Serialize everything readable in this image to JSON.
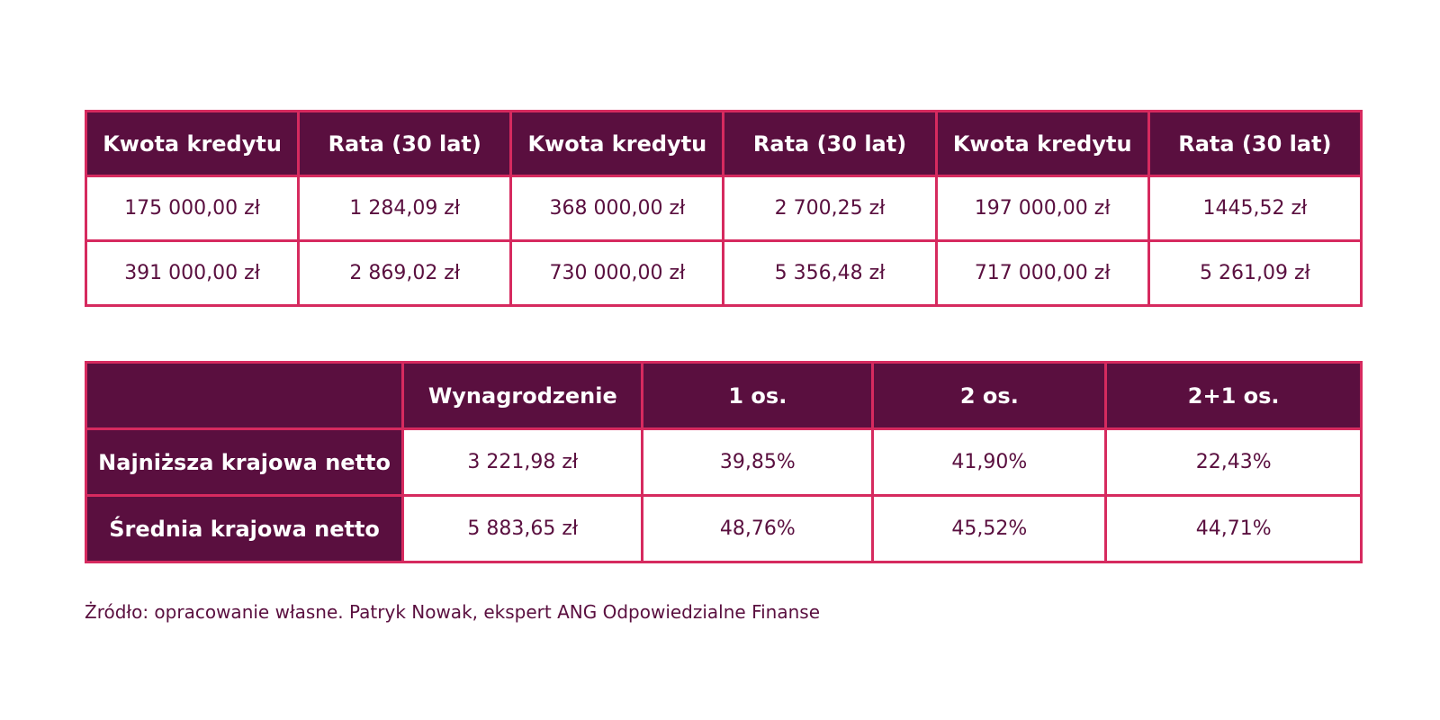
{
  "loans_table": {
    "headers": [
      "Kwota kredytu",
      "Rata (30 lat)",
      "Kwota kredytu",
      "Rata (30 lat)",
      "Kwota kredytu",
      "Rata (30 lat)"
    ],
    "rows": [
      [
        "175 000,00 zł",
        "1 284,09 zł",
        "368 000,00 zł",
        "2 700,25 zł",
        "197 000,00 zł",
        "1445,52 zł"
      ],
      [
        "391 000,00 zł",
        "2 869,02 zł",
        "730 000,00 zł",
        "5 356,48 zł",
        "717 000,00 zł",
        "5 261,09 zł"
      ]
    ]
  },
  "salary_table": {
    "headers": [
      "",
      "Wynagrodzenie",
      "1 os.",
      "2 os.",
      "2+1 os."
    ],
    "rows": [
      {
        "label": "Najniższa krajowa netto",
        "values": [
          "3 221,98 zł",
          "39,85%",
          "41,90%",
          "22,43%"
        ]
      },
      {
        "label": "Średnia krajowa netto",
        "values": [
          "5 883,65 zł",
          "48,76%",
          "45,52%",
          "44,71%"
        ]
      }
    ]
  },
  "source_note": "Żródło: opracowanie własne. Patryk Nowak, ekspert ANG Odpowiedzialne Finanse",
  "colors": {
    "header_bg": "#5a0f3f",
    "border": "#d62a5f",
    "text": "#5a0f3f"
  }
}
